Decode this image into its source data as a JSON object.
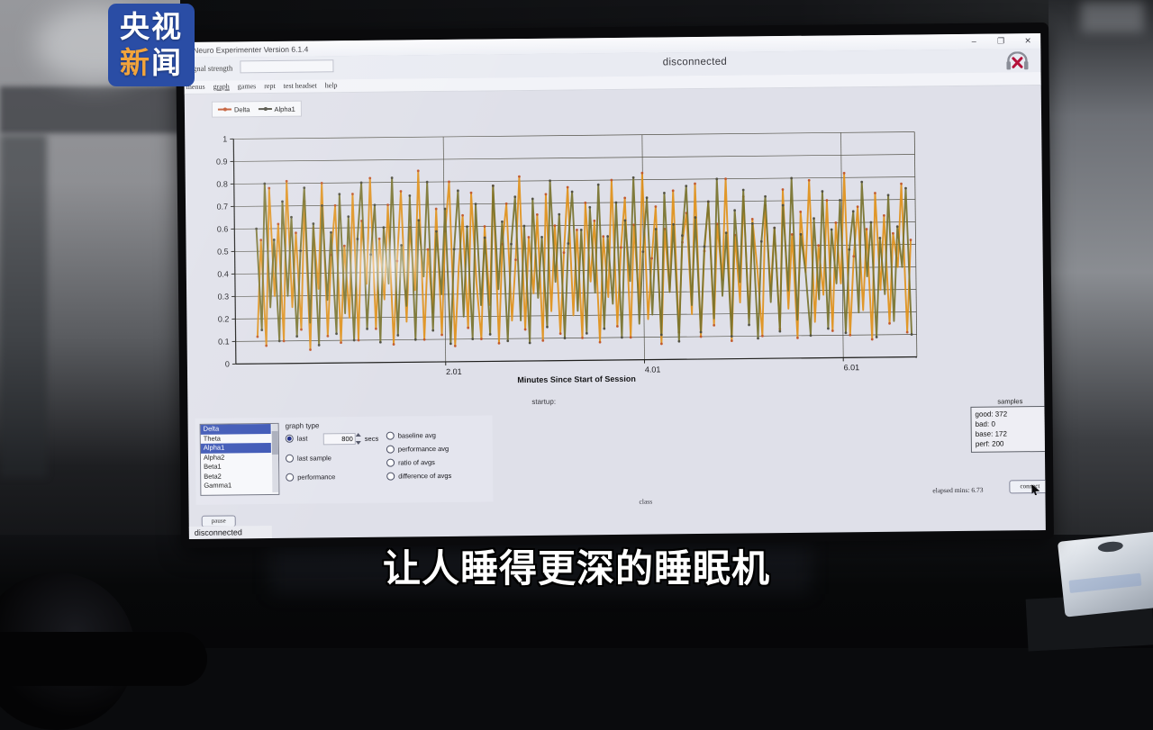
{
  "broadcast": {
    "logo_line1": "央视",
    "logo_line2_char1": "新",
    "logo_line2_char2": "闻",
    "subtitle": "让人睡得更深的睡眠机"
  },
  "window": {
    "title": "Neuro Experimenter Version 6.1.4",
    "status_center": "disconnected",
    "signal_strength_label": "signal strength",
    "signal_strength_value": "",
    "menu_items": [
      "menus",
      "graph",
      "games",
      "rept",
      "test headset",
      "help"
    ],
    "controls": [
      "–",
      "❐",
      "✕"
    ]
  },
  "chart_data": {
    "type": "line",
    "title": "",
    "xlabel": "Minutes Since Start of Session",
    "ylabel": "",
    "xlim": [
      -0.1,
      6.75
    ],
    "ylim": [
      0,
      1
    ],
    "x_ticks": [
      2.01,
      4.01,
      6.01
    ],
    "y_ticks": [
      0,
      0.1,
      0.2,
      0.3,
      0.4,
      0.5,
      0.6,
      0.7,
      0.8,
      0.9,
      1
    ],
    "grid": true,
    "legend_position": "top-left",
    "x_start": 0.12,
    "x_end": 6.7,
    "series": [
      {
        "name": "Delta",
        "color": "#e09018",
        "marker_color": "#c0532a",
        "values": [
          0.12,
          0.55,
          0.08,
          0.78,
          0.3,
          0.62,
          0.1,
          0.81,
          0.25,
          0.58,
          0.15,
          0.72,
          0.06,
          0.6,
          0.33,
          0.8,
          0.12,
          0.48,
          0.7,
          0.09,
          0.52,
          0.2,
          0.75,
          0.1,
          0.63,
          0.35,
          0.82,
          0.15,
          0.55,
          0.28,
          0.7,
          0.08,
          0.45,
          0.76,
          0.18,
          0.6,
          0.32,
          0.85,
          0.1,
          0.5,
          0.22,
          0.68,
          0.12,
          0.58,
          0.8,
          0.07,
          0.42,
          0.65,
          0.15,
          0.75,
          0.35,
          0.1,
          0.6,
          0.25,
          0.78,
          0.08,
          0.52,
          0.7,
          0.18,
          0.45,
          0.82,
          0.14,
          0.55,
          0.3,
          0.65,
          0.09,
          0.74,
          0.22,
          0.6,
          0.12,
          0.48,
          0.77,
          0.2,
          0.58,
          0.1,
          0.7,
          0.35,
          0.62,
          0.08,
          0.55,
          0.28,
          0.8,
          0.15,
          0.5,
          0.72,
          0.1,
          0.6,
          0.25,
          0.83,
          0.18,
          0.45,
          0.68,
          0.07,
          0.58,
          0.3,
          0.75,
          0.12,
          0.52,
          0.65,
          0.2,
          0.78,
          0.1,
          0.48,
          0.7,
          0.15,
          0.6,
          0.35,
          0.8,
          0.08,
          0.55,
          0.25,
          0.72,
          0.18,
          0.62,
          0.4,
          0.1,
          0.68,
          0.3,
          0.58,
          0.13,
          0.75,
          0.22,
          0.55,
          0.09,
          0.65,
          0.38,
          0.79,
          0.16,
          0.5,
          0.28,
          0.7,
          0.12,
          0.6,
          0.33,
          0.82,
          0.1,
          0.45,
          0.67,
          0.21,
          0.57,
          0.08,
          0.73,
          0.3,
          0.63,
          0.15,
          0.55,
          0.4,
          0.77,
          0.11,
          0.52
        ]
      },
      {
        "name": "Alpha1",
        "color": "#77722d",
        "marker_color": "#4c4c40",
        "values": [
          0.6,
          0.15,
          0.8,
          0.25,
          0.55,
          0.1,
          0.72,
          0.3,
          0.65,
          0.12,
          0.5,
          0.78,
          0.18,
          0.62,
          0.08,
          0.7,
          0.28,
          0.58,
          0.13,
          0.75,
          0.22,
          0.65,
          0.1,
          0.55,
          0.8,
          0.15,
          0.48,
          0.7,
          0.09,
          0.6,
          0.35,
          0.82,
          0.12,
          0.52,
          0.25,
          0.74,
          0.1,
          0.63,
          0.38,
          0.8,
          0.14,
          0.58,
          0.3,
          0.68,
          0.08,
          0.5,
          0.76,
          0.2,
          0.6,
          0.1,
          0.7,
          0.25,
          0.55,
          0.12,
          0.78,
          0.32,
          0.62,
          0.09,
          0.52,
          0.73,
          0.18,
          0.6,
          0.08,
          0.72,
          0.28,
          0.55,
          0.15,
          0.8,
          0.35,
          0.65,
          0.1,
          0.52,
          0.75,
          0.22,
          0.58,
          0.12,
          0.68,
          0.3,
          0.78,
          0.14,
          0.55,
          0.25,
          0.7,
          0.1,
          0.62,
          0.35,
          0.81,
          0.16,
          0.48,
          0.72,
          0.2,
          0.58,
          0.11,
          0.74,
          0.3,
          0.6,
          0.08,
          0.55,
          0.77,
          0.24,
          0.63,
          0.12,
          0.5,
          0.7,
          0.18,
          0.8,
          0.28,
          0.56,
          0.1,
          0.66,
          0.34,
          0.75,
          0.15,
          0.6,
          0.09,
          0.52,
          0.72,
          0.25,
          0.58,
          0.12,
          0.68,
          0.3,
          0.8,
          0.17,
          0.55,
          0.38,
          0.1,
          0.62,
          0.26,
          0.74,
          0.13,
          0.57,
          0.33,
          0.7,
          0.11,
          0.48,
          0.65,
          0.2,
          0.78,
          0.36,
          0.6,
          0.09,
          0.53,
          0.28,
          0.72,
          0.16,
          0.58,
          0.4,
          0.75,
          0.1
        ]
      }
    ]
  },
  "panel": {
    "band_list": {
      "items": [
        "Delta",
        "Theta",
        "Alpha1",
        "Alpha2",
        "Beta1",
        "Beta2",
        "Gamma1"
      ],
      "selected": [
        "Delta",
        "Alpha1"
      ]
    },
    "graph_type_label": "graph type",
    "radios_left": [
      {
        "label": "last",
        "selected": true
      },
      {
        "label": "last sample",
        "selected": false
      },
      {
        "label": "performance",
        "selected": false
      }
    ],
    "secs_value": "800",
    "secs_label": "secs",
    "radios_right": [
      {
        "label": "baseline avg",
        "selected": false
      },
      {
        "label": "performance avg",
        "selected": false
      },
      {
        "label": "ratio of avgs",
        "selected": false
      },
      {
        "label": "difference of avgs",
        "selected": false
      }
    ],
    "samples": {
      "title": "samples",
      "rows": [
        {
          "key": "good",
          "value": "372"
        },
        {
          "key": "bad",
          "value": "0"
        },
        {
          "key": "base",
          "value": "172"
        },
        {
          "key": "perf",
          "value": "200"
        }
      ]
    }
  },
  "footer": {
    "startup_label": "startup:",
    "class_label": "class",
    "elapsed_label": "elapsed mins: 6.73",
    "connect_button": "connect",
    "pause_button": "pause",
    "status": "disconnected"
  }
}
